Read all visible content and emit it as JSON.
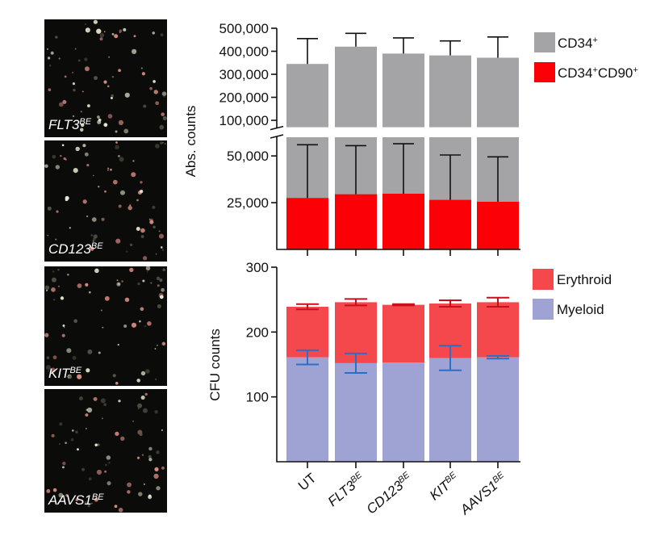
{
  "images": [
    {
      "label": [
        {
          "t": "FLT3"
        },
        {
          "s": "BE"
        }
      ]
    },
    {
      "label": [
        {
          "t": "CD123"
        },
        {
          "s": "BE"
        }
      ]
    },
    {
      "label": [
        {
          "t": "KIT"
        },
        {
          "s": "BE"
        }
      ]
    },
    {
      "label": [
        {
          "t": "AAVS1"
        },
        {
          "s": "BE"
        }
      ]
    }
  ],
  "chart_data": [
    {
      "type": "broken_bar",
      "ylabel": "Abs. counts",
      "overlay": true,
      "categories": [
        [
          {
            "t": "UT"
          }
        ],
        [
          {
            "t": "FLT3"
          },
          {
            "s": "BE"
          }
        ],
        [
          {
            "t": "CD123"
          },
          {
            "s": "BE"
          }
        ],
        [
          {
            "t": "KIT"
          },
          {
            "s": "BE"
          }
        ],
        [
          {
            "t": "AAVS1"
          },
          {
            "s": "BE"
          }
        ]
      ],
      "ylim_upper": [
        70000,
        500000
      ],
      "yticks_upper": [
        {
          "value": 100000,
          "label": "100,000"
        },
        {
          "value": 200000,
          "label": "200,000"
        },
        {
          "value": 300000,
          "label": "300,000"
        },
        {
          "value": 400000,
          "label": "400,000"
        },
        {
          "value": 500000,
          "label": "500,000"
        }
      ],
      "ylim_lower": [
        0,
        60000
      ],
      "yticks_lower": [
        {
          "value": 25000,
          "label": "25,000"
        },
        {
          "value": 50000,
          "label": "50,000"
        }
      ],
      "series": [
        {
          "name": [
            {
              "t": "CD34"
            },
            {
              "s": "+"
            }
          ],
          "color": "#a4a4a6",
          "values": [
            345000,
            420000,
            390000,
            382000,
            372000
          ],
          "errors": [
            110000,
            58000,
            68000,
            63000,
            90000
          ]
        },
        {
          "name": [
            {
              "t": "CD34"
            },
            {
              "s": "+"
            },
            {
              "t": "CD90"
            },
            {
              "s": "+"
            }
          ],
          "color": "#fb0007",
          "values": [
            27500,
            29500,
            29800,
            26500,
            25500
          ],
          "errors": [
            28500,
            26000,
            26700,
            24000,
            24000
          ]
        }
      ]
    },
    {
      "type": "stacked_bar",
      "ylabel": "CFU counts",
      "categories": [
        [
          {
            "t": "UT"
          }
        ],
        [
          {
            "t": "FLT3"
          },
          {
            "s": "BE"
          }
        ],
        [
          {
            "t": "CD123"
          },
          {
            "s": "BE"
          }
        ],
        [
          {
            "t": "KIT"
          },
          {
            "s": "BE"
          }
        ],
        [
          {
            "t": "AAVS1"
          },
          {
            "s": "BE"
          }
        ]
      ],
      "ylim": [
        0,
        300
      ],
      "yticks": [
        100,
        200,
        300
      ],
      "series": [
        {
          "name": [
            {
              "t": "Myeloid"
            }
          ],
          "color": "#9ea3d3",
          "error_color": "#2b6fc4",
          "values": [
            161,
            152,
            153,
            160,
            161
          ],
          "errors": [
            11,
            15,
            null,
            19,
            2
          ]
        },
        {
          "name": [
            {
              "t": "Erythroid"
            }
          ],
          "color": "#f4484c",
          "error_color": "#c8101a",
          "values": [
            78,
            94,
            89,
            84,
            85
          ],
          "errors": [
            4,
            5,
            1,
            5,
            7
          ]
        }
      ]
    }
  ]
}
